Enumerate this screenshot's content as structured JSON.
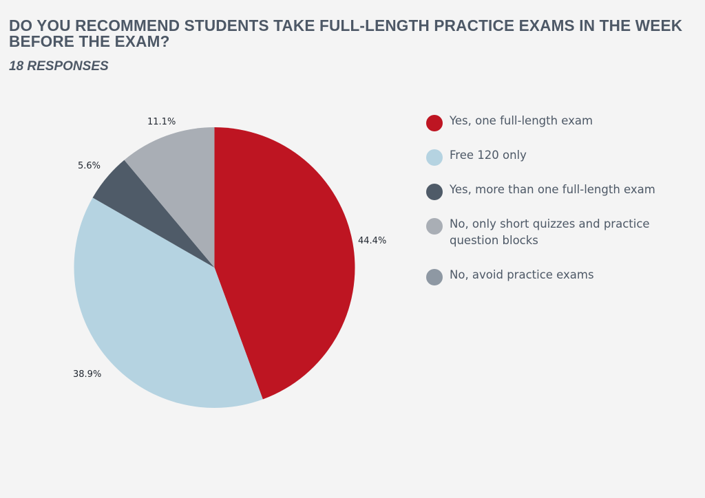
{
  "header": {
    "title": "DO YOU RECOMMEND STUDENTS TAKE FULL-LENGTH PRACTICE EXAMS IN THE WEEK BEFORE THE EXAM?",
    "subtitle": "18 RESPONSES"
  },
  "legend": {
    "items": [
      {
        "label": "Yes, one full-length exam",
        "color": "#be1522"
      },
      {
        "label": "Free 120 only",
        "color": "#b5d3e1"
      },
      {
        "label": "Yes, more than one full-length exam",
        "color": "#4f5b68"
      },
      {
        "label": "No, only short quizzes and practice question blocks",
        "color": "#a9aeb5"
      },
      {
        "label": "No, avoid practice exams",
        "color": "#8e98a3"
      }
    ]
  },
  "slice_labels": [
    "44.4%",
    "38.9%",
    "5.6%",
    "11.1%"
  ],
  "chart_data": {
    "type": "pie",
    "title": "DO YOU RECOMMEND STUDENTS TAKE FULL-LENGTH PRACTICE EXAMS IN THE WEEK BEFORE THE EXAM?",
    "subtitle": "18 RESPONSES",
    "categories": [
      "Yes, one full-length exam",
      "Free 120 only",
      "Yes, more than one full-length exam",
      "No, only short quizzes and practice question blocks",
      "No, avoid practice exams"
    ],
    "values": [
      44.4,
      38.9,
      5.6,
      11.1,
      0
    ],
    "counts": [
      8,
      7,
      1,
      2,
      0
    ],
    "colors": [
      "#be1522",
      "#b5d3e1",
      "#4f5b68",
      "#a9aeb5",
      "#8e98a3"
    ],
    "data_labels": [
      "44.4%",
      "38.9%",
      "5.6%",
      "11.1%"
    ],
    "start_angle": "12 o'clock, clockwise",
    "legend_position": "right"
  }
}
